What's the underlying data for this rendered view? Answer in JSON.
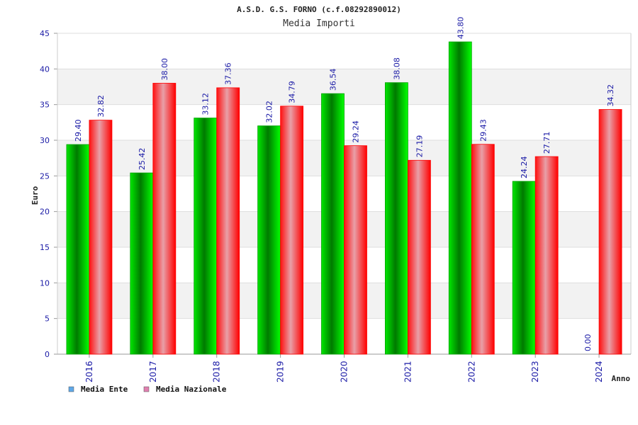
{
  "chart_data": {
    "type": "bar",
    "title": "A.S.D. G.S. FORNO (c.f.08292890012)",
    "subtitle": "Media Importi",
    "xlabel": "Anno",
    "ylabel": "Euro",
    "ylim": [
      0,
      45
    ],
    "yticks": [
      "0",
      "5",
      "10",
      "15",
      "20",
      "25",
      "30",
      "35",
      "40",
      "45"
    ],
    "categories": [
      "2016",
      "2017",
      "2018",
      "2019",
      "2020",
      "2021",
      "2022",
      "2023",
      "2024"
    ],
    "series": [
      {
        "name": "Media Ente",
        "values": [
          29.4,
          25.42,
          33.12,
          32.02,
          36.54,
          38.08,
          43.8,
          24.24,
          0.0
        ],
        "labels": [
          "29.40",
          "25.42",
          "33.12",
          "32.02",
          "36.54",
          "38.08",
          "43.80",
          "24.24",
          "0.00"
        ],
        "color": "#00c000",
        "legend_color": "#5fa8e8"
      },
      {
        "name": "Media Nazionale",
        "values": [
          32.82,
          38.0,
          37.36,
          34.79,
          29.24,
          27.19,
          29.43,
          27.71,
          34.32
        ],
        "labels": [
          "32.82",
          "38.00",
          "37.36",
          "34.79",
          "29.24",
          "27.19",
          "29.43",
          "27.71",
          "34.32"
        ],
        "color": "#ff0000",
        "legend_color": "#e080b0"
      }
    ],
    "grid": true,
    "legend_position": "bottom-left"
  }
}
